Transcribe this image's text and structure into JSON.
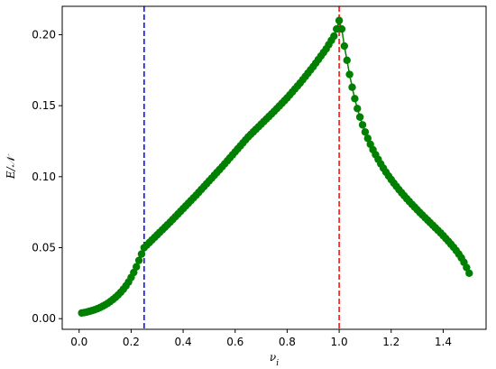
{
  "chart_data": {
    "type": "scatter",
    "xlabel": "ν_i",
    "ylabel": "E/𝒩",
    "xlim": [
      -0.065,
      1.565
    ],
    "ylim": [
      -0.0075,
      0.22
    ],
    "xticks": [
      "0.0",
      "0.2",
      "0.4",
      "0.6",
      "0.8",
      "1.0",
      "1.2",
      "1.4"
    ],
    "xtick_values": [
      0.0,
      0.2,
      0.4,
      0.6,
      0.8,
      1.0,
      1.2,
      1.4
    ],
    "yticks": [
      "0.00",
      "0.05",
      "0.10",
      "0.15",
      "0.20"
    ],
    "ytick_values": [
      0.0,
      0.05,
      0.1,
      0.15,
      0.2
    ],
    "grid": false,
    "series": [
      {
        "color": "#008000",
        "marker": "circle",
        "line": true,
        "points": [
          [
            0.01,
            0.004
          ],
          [
            0.02,
            0.0043
          ],
          [
            0.03,
            0.0047
          ],
          [
            0.04,
            0.0052
          ],
          [
            0.05,
            0.0057
          ],
          [
            0.06,
            0.0063
          ],
          [
            0.07,
            0.007
          ],
          [
            0.08,
            0.0078
          ],
          [
            0.09,
            0.0087
          ],
          [
            0.1,
            0.0097
          ],
          [
            0.11,
            0.0108
          ],
          [
            0.12,
            0.0121
          ],
          [
            0.13,
            0.0135
          ],
          [
            0.14,
            0.015
          ],
          [
            0.15,
            0.0167
          ],
          [
            0.16,
            0.0186
          ],
          [
            0.17,
            0.0207
          ],
          [
            0.18,
            0.0231
          ],
          [
            0.19,
            0.0258
          ],
          [
            0.2,
            0.029
          ],
          [
            0.21,
            0.0325
          ],
          [
            0.22,
            0.0365
          ],
          [
            0.23,
            0.041
          ],
          [
            0.24,
            0.0455
          ],
          [
            0.25,
            0.05
          ],
          [
            0.26,
            0.0518
          ],
          [
            0.27,
            0.0536
          ],
          [
            0.28,
            0.0554
          ],
          [
            0.29,
            0.0572
          ],
          [
            0.3,
            0.059
          ],
          [
            0.31,
            0.0608
          ],
          [
            0.32,
            0.0626
          ],
          [
            0.33,
            0.0644
          ],
          [
            0.34,
            0.0662
          ],
          [
            0.35,
            0.068
          ],
          [
            0.36,
            0.0699
          ],
          [
            0.37,
            0.0718
          ],
          [
            0.38,
            0.0737
          ],
          [
            0.39,
            0.0756
          ],
          [
            0.4,
            0.0775
          ],
          [
            0.41,
            0.0794
          ],
          [
            0.42,
            0.0813
          ],
          [
            0.43,
            0.0832
          ],
          [
            0.44,
            0.0851
          ],
          [
            0.45,
            0.087
          ],
          [
            0.46,
            0.089
          ],
          [
            0.47,
            0.091
          ],
          [
            0.48,
            0.093
          ],
          [
            0.49,
            0.095
          ],
          [
            0.5,
            0.097
          ],
          [
            0.51,
            0.099
          ],
          [
            0.52,
            0.101
          ],
          [
            0.53,
            0.103
          ],
          [
            0.54,
            0.105
          ],
          [
            0.55,
            0.107
          ],
          [
            0.56,
            0.1091
          ],
          [
            0.57,
            0.1112
          ],
          [
            0.58,
            0.1133
          ],
          [
            0.59,
            0.1154
          ],
          [
            0.6,
            0.1175
          ],
          [
            0.61,
            0.1196
          ],
          [
            0.62,
            0.1217
          ],
          [
            0.63,
            0.1238
          ],
          [
            0.64,
            0.1259
          ],
          [
            0.65,
            0.128
          ],
          [
            0.66,
            0.1298
          ],
          [
            0.67,
            0.1316
          ],
          [
            0.68,
            0.1334
          ],
          [
            0.69,
            0.1352
          ],
          [
            0.7,
            0.137
          ],
          [
            0.71,
            0.1388
          ],
          [
            0.72,
            0.1406
          ],
          [
            0.73,
            0.1424
          ],
          [
            0.74,
            0.1442
          ],
          [
            0.75,
            0.146
          ],
          [
            0.76,
            0.1479
          ],
          [
            0.77,
            0.1498
          ],
          [
            0.78,
            0.1517
          ],
          [
            0.79,
            0.1536
          ],
          [
            0.8,
            0.1555
          ],
          [
            0.81,
            0.1576
          ],
          [
            0.82,
            0.1597
          ],
          [
            0.83,
            0.1618
          ],
          [
            0.84,
            0.1639
          ],
          [
            0.85,
            0.166
          ],
          [
            0.86,
            0.1683
          ],
          [
            0.87,
            0.1706
          ],
          [
            0.88,
            0.1729
          ],
          [
            0.89,
            0.1752
          ],
          [
            0.9,
            0.1775
          ],
          [
            0.91,
            0.18
          ],
          [
            0.92,
            0.1825
          ],
          [
            0.93,
            0.185
          ],
          [
            0.94,
            0.1875
          ],
          [
            0.95,
            0.19
          ],
          [
            0.96,
            0.193
          ],
          [
            0.97,
            0.196
          ],
          [
            0.98,
            0.199
          ],
          [
            0.99,
            0.204
          ],
          [
            1.0,
            0.21
          ],
          [
            1.01,
            0.204
          ],
          [
            1.02,
            0.192
          ],
          [
            1.03,
            0.182
          ],
          [
            1.04,
            0.172
          ],
          [
            1.05,
            0.163
          ],
          [
            1.06,
            0.155
          ],
          [
            1.07,
            0.148
          ],
          [
            1.08,
            0.142
          ],
          [
            1.09,
            0.1365
          ],
          [
            1.1,
            0.1315
          ],
          [
            1.11,
            0.127
          ],
          [
            1.12,
            0.1228
          ],
          [
            1.13,
            0.119
          ],
          [
            1.14,
            0.1155
          ],
          [
            1.15,
            0.1122
          ],
          [
            1.16,
            0.109
          ],
          [
            1.17,
            0.106
          ],
          [
            1.18,
            0.1032
          ],
          [
            1.19,
            0.1005
          ],
          [
            1.2,
            0.098
          ],
          [
            1.21,
            0.0955
          ],
          [
            1.22,
            0.0932
          ],
          [
            1.23,
            0.0909
          ],
          [
            1.24,
            0.0887
          ],
          [
            1.25,
            0.0866
          ],
          [
            1.26,
            0.0845
          ],
          [
            1.27,
            0.0825
          ],
          [
            1.28,
            0.0805
          ],
          [
            1.29,
            0.0786
          ],
          [
            1.3,
            0.0767
          ],
          [
            1.31,
            0.0748
          ],
          [
            1.32,
            0.073
          ],
          [
            1.33,
            0.0712
          ],
          [
            1.34,
            0.0694
          ],
          [
            1.35,
            0.0676
          ],
          [
            1.36,
            0.0658
          ],
          [
            1.37,
            0.064
          ],
          [
            1.38,
            0.0622
          ],
          [
            1.39,
            0.0604
          ],
          [
            1.4,
            0.0585
          ],
          [
            1.41,
            0.0565
          ],
          [
            1.42,
            0.0545
          ],
          [
            1.43,
            0.0524
          ],
          [
            1.44,
            0.0503
          ],
          [
            1.45,
            0.048
          ],
          [
            1.46,
            0.0455
          ],
          [
            1.47,
            0.0428
          ],
          [
            1.48,
            0.0397
          ],
          [
            1.49,
            0.036
          ],
          [
            1.5,
            0.032
          ]
        ]
      }
    ],
    "vlines": [
      {
        "x": 0.25,
        "color": "#0000ff",
        "style": "dashed"
      },
      {
        "x": 1.0,
        "color": "#ff0000",
        "style": "dashed"
      }
    ]
  }
}
